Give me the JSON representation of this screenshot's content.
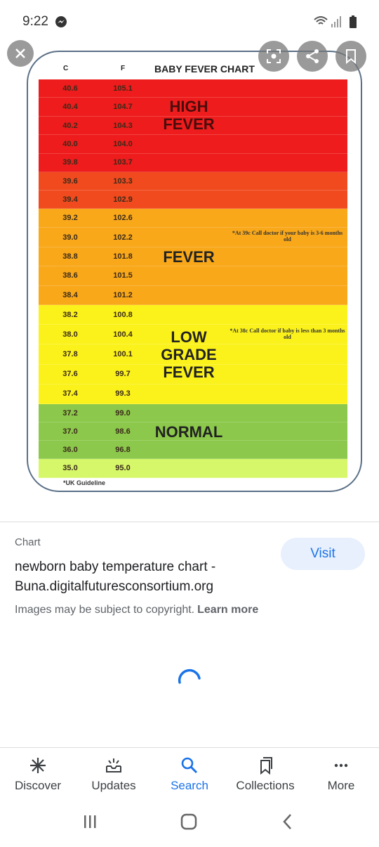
{
  "status_bar": {
    "time": "9:22"
  },
  "image": {
    "header": {
      "c": "C",
      "f": "F",
      "title": "BABY FEVER CHART"
    },
    "bands": [
      {
        "label": [
          "HIGH",
          "FEVER"
        ],
        "color": "#ee1c1c",
        "rows": [
          {
            "c": "40.6",
            "f": "105.1"
          },
          {
            "c": "40.4",
            "f": "104.7"
          },
          {
            "c": "40.2",
            "f": "104.3"
          },
          {
            "c": "40.0",
            "f": "104.0"
          },
          {
            "c": "39.8",
            "f": "103.7"
          }
        ]
      },
      {
        "color": "#f04a1e",
        "rows": [
          {
            "c": "39.6",
            "f": "103.3"
          },
          {
            "c": "39.4",
            "f": "102.9"
          }
        ]
      },
      {
        "label": [
          "FEVER"
        ],
        "color": "#f9a81a",
        "note": "*At 39c Call doctor if your baby is 3-6 months old",
        "rows": [
          {
            "c": "39.2",
            "f": "102.6"
          },
          {
            "c": "39.0",
            "f": "102.2"
          },
          {
            "c": "38.8",
            "f": "101.8"
          },
          {
            "c": "38.6",
            "f": "101.5"
          },
          {
            "c": "38.4",
            "f": "101.2"
          }
        ]
      },
      {
        "label": [
          "LOW",
          "GRADE",
          "FEVER"
        ],
        "color": "#fbf21b",
        "note": "*At 38c Call doctor if baby is less than 3 months old",
        "rows": [
          {
            "c": "38.2",
            "f": "100.8"
          },
          {
            "c": "38.0",
            "f": "100.4"
          },
          {
            "c": "37.8",
            "f": "100.1"
          },
          {
            "c": "37.6",
            "f": "99.7"
          },
          {
            "c": "37.4",
            "f": "99.3"
          }
        ]
      },
      {
        "label": [
          "NORMAL"
        ],
        "color": "#8cc84b",
        "rows": [
          {
            "c": "37.2",
            "f": "99.0"
          },
          {
            "c": "37.0",
            "f": "98.6"
          },
          {
            "c": "36.0",
            "f": "96.8"
          }
        ]
      },
      {
        "color": "#d6f76a",
        "rows": [
          {
            "c": "35.0",
            "f": "95.0"
          }
        ]
      }
    ],
    "footnote": "*UK Guideline"
  },
  "info": {
    "category": "Chart",
    "title": "newborn baby temperature chart - Buna.digitalfuturesconsortium.org",
    "visit": "Visit",
    "copyright": "Images may be subject to copyright.",
    "learn_more": "Learn more"
  },
  "nav": {
    "items": [
      "Discover",
      "Updates",
      "Search",
      "Collections",
      "More"
    ],
    "active": 2
  }
}
